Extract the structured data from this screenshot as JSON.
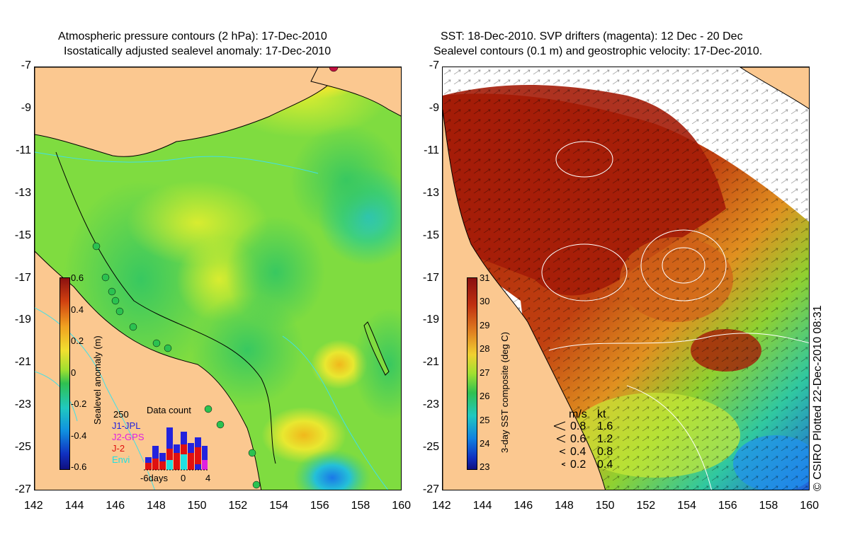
{
  "left": {
    "title1": "Atmospheric pressure contours (2 hPa): 17-Dec-2010",
    "title2": "Isostatically adjusted sealevel anomaly: 17-Dec-2010",
    "colorbar_label": "Sealevel anomaly (m)",
    "colorbar_ticks": [
      "0.6",
      "0.4",
      "0.2",
      "0",
      "-0.2",
      "-0.4",
      "-0.6"
    ],
    "datacount": {
      "title": "Data count",
      "max_label": "250",
      "missions": [
        {
          "name": "J1-JPL",
          "color": "#2222dd"
        },
        {
          "name": "J2-GPS",
          "color": "#e020e0"
        },
        {
          "name": "J-2",
          "color": "#e01010"
        },
        {
          "name": "Envi",
          "color": "#20e0e0"
        }
      ],
      "x_labels": [
        "-6days",
        "0",
        "4"
      ]
    }
  },
  "right": {
    "title1": "SST: 18-Dec-2010. SVP drifters (magenta): 12 Dec - 20 Dec",
    "title2": "Sealevel contours (0.1 m) and geostrophic velocity: 17-Dec-2010.",
    "colorbar_label": "3-day SST composite (deg C)",
    "colorbar_ticks": [
      "31",
      "30",
      "29",
      "28",
      "27",
      "26",
      "25",
      "24",
      "23"
    ],
    "velocity_legend": {
      "header_ms": "m/s",
      "header_kt": "kt",
      "rows": [
        {
          "ms": "0.8",
          "kt": "1.6"
        },
        {
          "ms": "0.6",
          "kt": "1.2"
        },
        {
          "ms": "0.4",
          "kt": "0.8"
        },
        {
          "ms": "0.2",
          "kt": "0.4"
        }
      ]
    }
  },
  "axes": {
    "lat_ticks": [
      "-7",
      "-9",
      "-11",
      "-13",
      "-15",
      "-17",
      "-19",
      "-21",
      "-23",
      "-25",
      "-27"
    ],
    "lon_ticks": [
      "142",
      "144",
      "146",
      "148",
      "150",
      "152",
      "154",
      "156",
      "158",
      "160"
    ]
  },
  "credit": "© CSIRO Plotted 22-Dec-2010 08:31",
  "colors": {
    "land": "#fbc890",
    "sea_neutral": "#8fe03a",
    "sst_hot": "#a41c08",
    "coast": "#000000",
    "contour_left": "#40e0e8",
    "contour_right": "#ffffff"
  }
}
